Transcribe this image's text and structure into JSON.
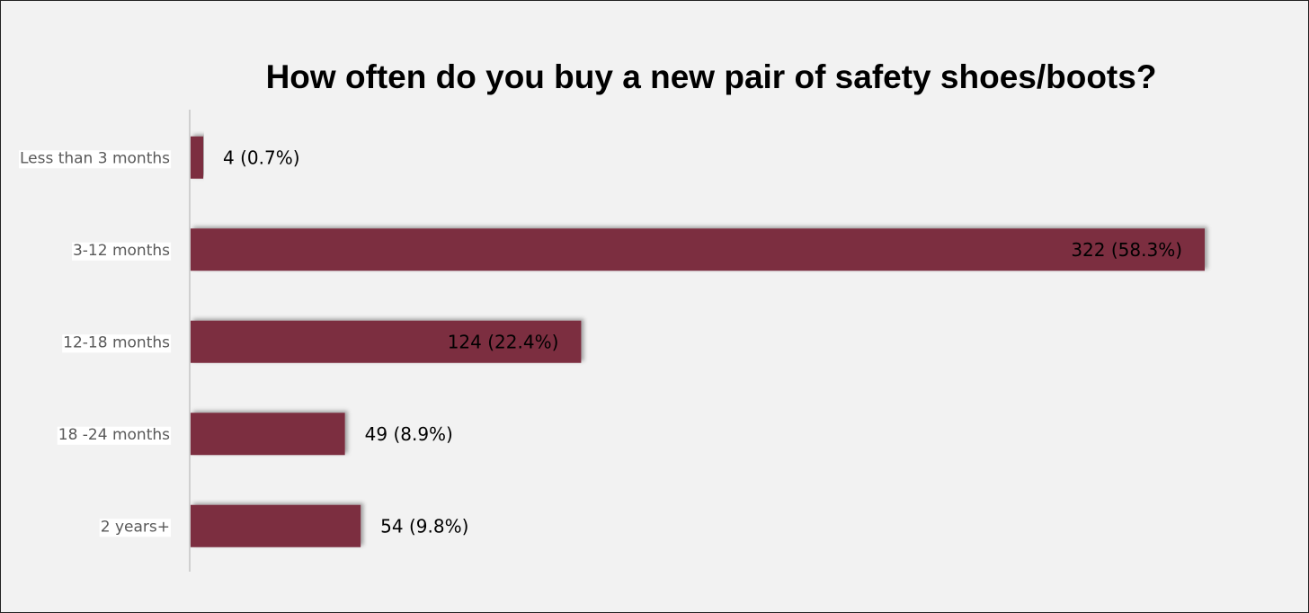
{
  "chart_data": {
    "type": "bar",
    "orientation": "horizontal",
    "title": "How often do you buy a new pair of safety shoes/boots?",
    "categories": [
      "Less than 3 months",
      "3-12 months",
      "12-18 months",
      "18 -24 months",
      "2 years+"
    ],
    "values": [
      4,
      322,
      124,
      49,
      54
    ],
    "data_labels": [
      "4 (0.7%)",
      "322 (58.3%)",
      "124 (22.4%)",
      "49 (8.9%)",
      "54 (9.8%)"
    ],
    "xlabel": "",
    "ylabel": "",
    "grid": false,
    "legend": "none",
    "bar_color": "#7b2d3f"
  }
}
